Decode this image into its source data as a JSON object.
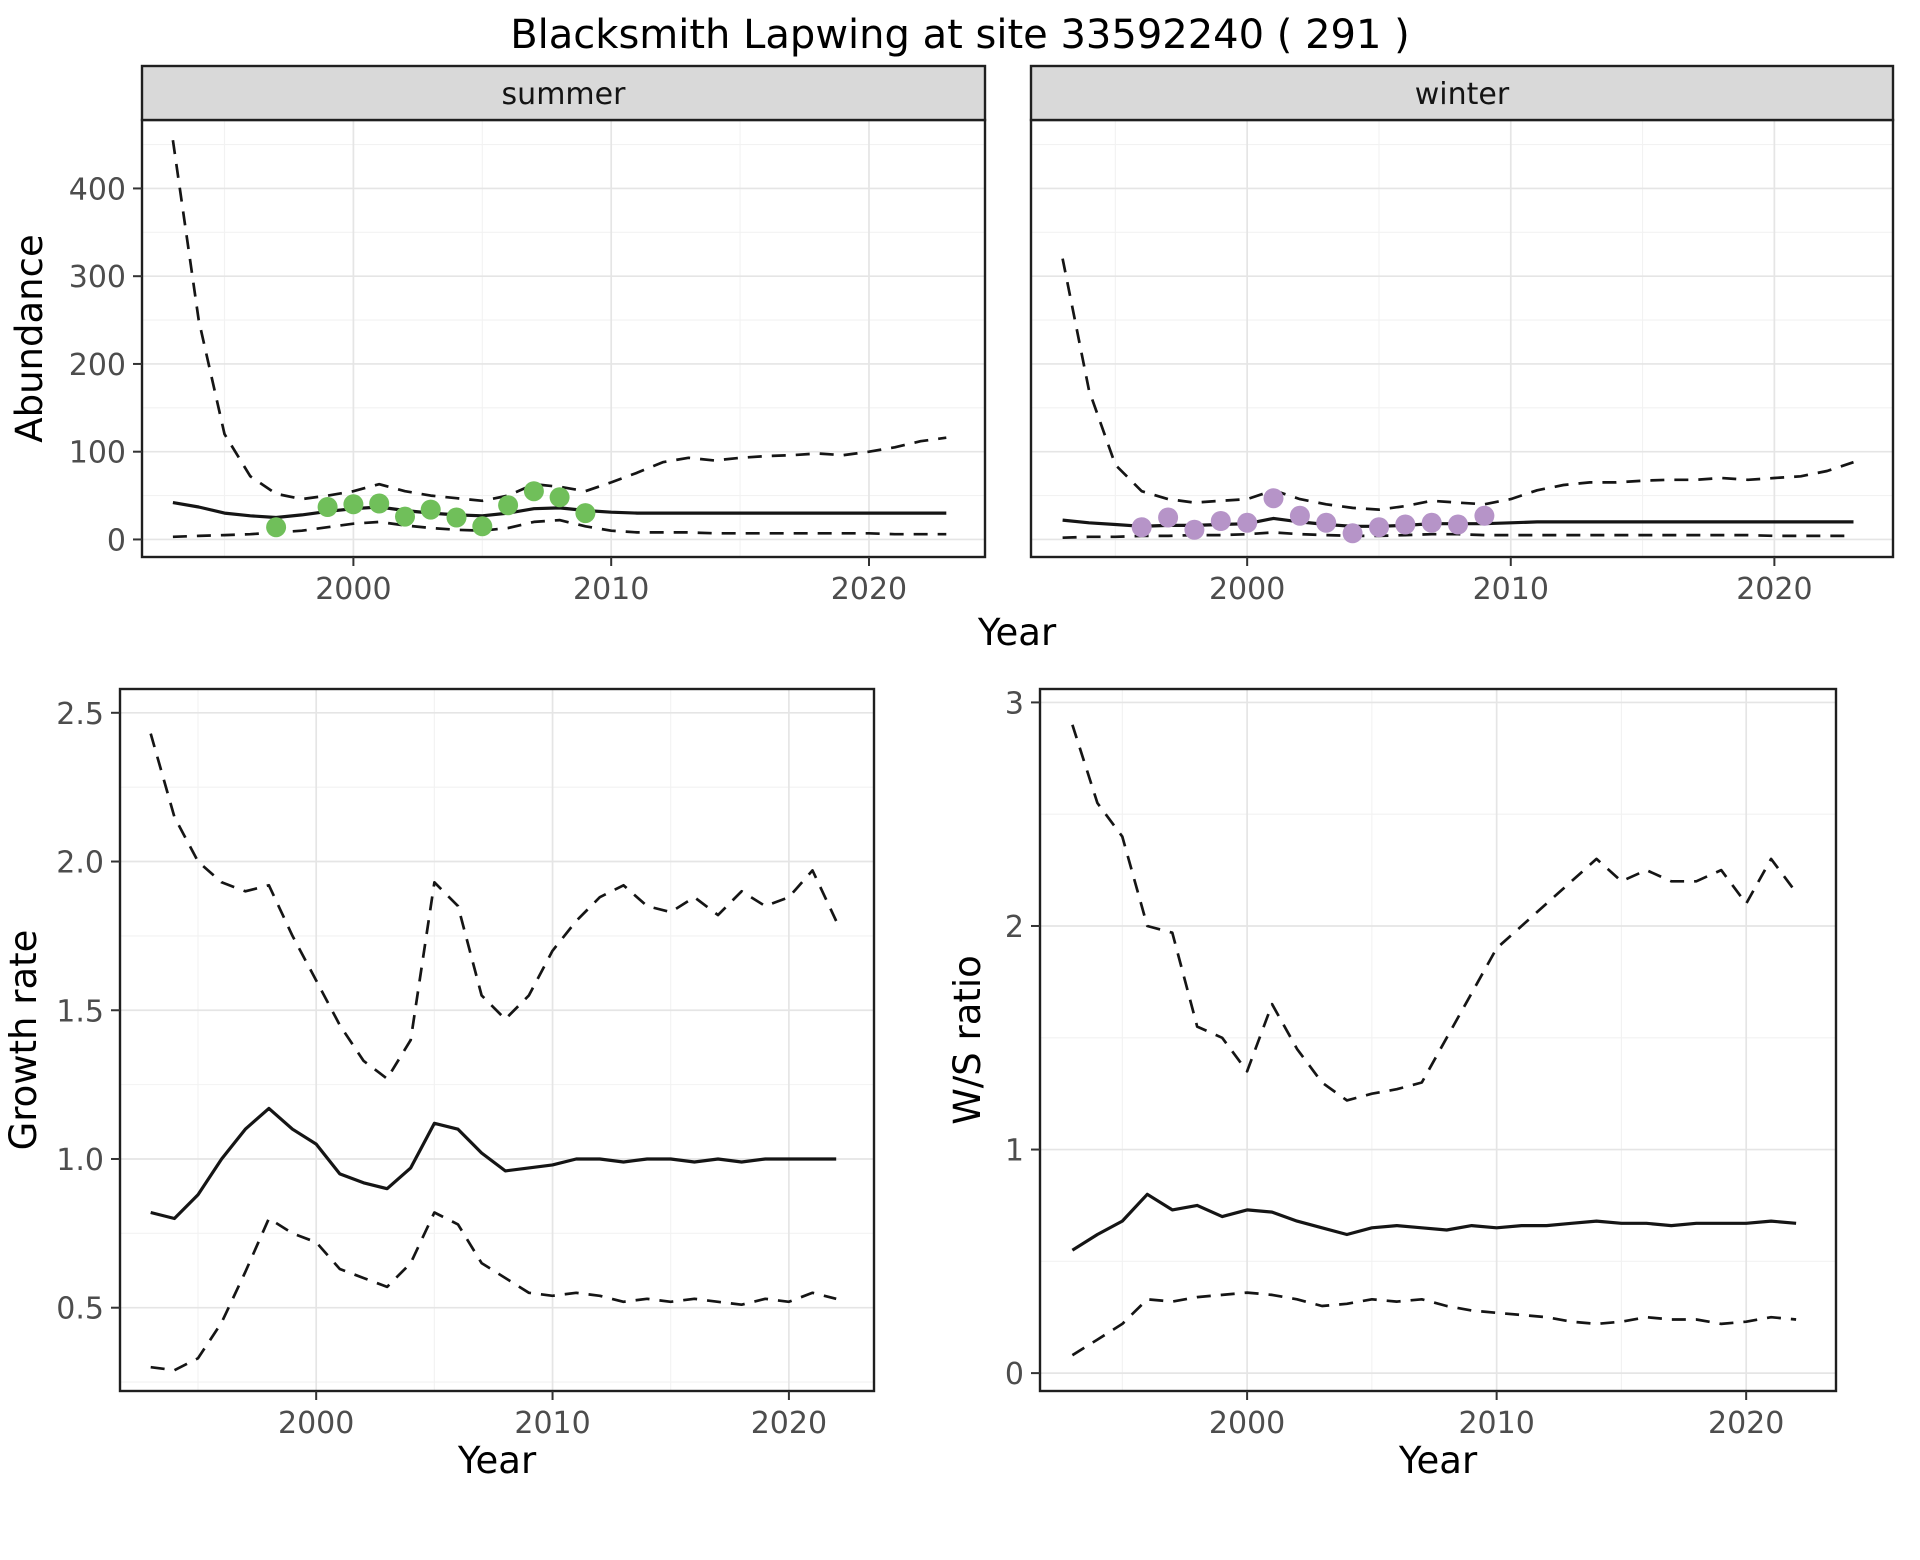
{
  "title": "Blacksmith Lapwing at site 33592240 ( 291 )",
  "colors": {
    "line": "#151515",
    "border": "#1f1f1f",
    "strip_bg": "#d9d9d9",
    "strip_text": "#141414",
    "grid_major": "#e5e5e5",
    "grid_minor": "#f2f2f2",
    "tick_text": "#4d4d4d",
    "summer_points": "#70bf5a",
    "winter_points": "#b694c8"
  },
  "chart_data": [
    {
      "id": "summer-abundance",
      "type": "line",
      "strip": "summer",
      "xlabel": "Year",
      "ylabel": "Abundance",
      "xlim": [
        1991.8,
        2024.5
      ],
      "ylim": [
        -20,
        478
      ],
      "xticks": [
        2000,
        2010,
        2020
      ],
      "xtick_labels": [
        "2000",
        "2010",
        "2020"
      ],
      "yticks": [
        0,
        100,
        200,
        300,
        400
      ],
      "ytick_labels": [
        "0",
        "100",
        "200",
        "300",
        "400"
      ],
      "grid": true,
      "legend": "none",
      "series": [
        {
          "name": "upper_95ci",
          "style": "dashed",
          "x": [
            1993,
            1994,
            1995,
            1996,
            1997,
            1998,
            1999,
            2000,
            2001,
            2002,
            2003,
            2004,
            2005,
            2006,
            2007,
            2008,
            2009,
            2010,
            2011,
            2012,
            2013,
            2014,
            2015,
            2016,
            2017,
            2018,
            2019,
            2020,
            2021,
            2022,
            2023
          ],
          "y": [
            455,
            250,
            120,
            72,
            52,
            46,
            50,
            55,
            63,
            55,
            50,
            47,
            44,
            50,
            63,
            60,
            55,
            65,
            76,
            88,
            93,
            90,
            93,
            95,
            96,
            98,
            96,
            100,
            105,
            112,
            116
          ]
        },
        {
          "name": "median",
          "style": "solid",
          "x": [
            1993,
            1994,
            1995,
            1996,
            1997,
            1998,
            1999,
            2000,
            2001,
            2002,
            2003,
            2004,
            2005,
            2006,
            2007,
            2008,
            2009,
            2010,
            2011,
            2012,
            2013,
            2014,
            2015,
            2016,
            2017,
            2018,
            2019,
            2020,
            2021,
            2022,
            2023
          ],
          "y": [
            42,
            37,
            30,
            27,
            25,
            28,
            32,
            35,
            37,
            33,
            30,
            28,
            27,
            30,
            35,
            36,
            33,
            31,
            30,
            30,
            30,
            30,
            30,
            30,
            30,
            30,
            30,
            30,
            30,
            30,
            30
          ]
        },
        {
          "name": "lower_95ci",
          "style": "dashed",
          "x": [
            1993,
            1994,
            1995,
            1996,
            1997,
            1998,
            1999,
            2000,
            2001,
            2002,
            2003,
            2004,
            2005,
            2006,
            2007,
            2008,
            2009,
            2010,
            2011,
            2012,
            2013,
            2014,
            2015,
            2016,
            2017,
            2018,
            2019,
            2020,
            2021,
            2022,
            2023
          ],
          "y": [
            3,
            4,
            5,
            6,
            8,
            10,
            14,
            18,
            20,
            16,
            13,
            11,
            10,
            13,
            20,
            22,
            15,
            10,
            8,
            8,
            8,
            7,
            7,
            7,
            7,
            7,
            7,
            7,
            6,
            6,
            6
          ]
        },
        {
          "name": "observations",
          "style": "points",
          "color": "#70bf5a",
          "x": [
            1997,
            1999,
            2000,
            2001,
            2002,
            2003,
            2004,
            2005,
            2006,
            2007,
            2008,
            2009
          ],
          "y": [
            14,
            37,
            40,
            41,
            26,
            34,
            25,
            15,
            39,
            55,
            48,
            30
          ]
        }
      ]
    },
    {
      "id": "winter-abundance",
      "type": "line",
      "strip": "winter",
      "xlabel": "Year",
      "ylabel": "Abundance",
      "xlim": [
        1991.8,
        2024.5
      ],
      "ylim": [
        -20,
        478
      ],
      "xticks": [
        2000,
        2010,
        2020
      ],
      "xtick_labels": [
        "2000",
        "2010",
        "2020"
      ],
      "yticks": [
        0,
        100,
        200,
        300,
        400
      ],
      "ytick_labels": [
        "0",
        "100",
        "200",
        "300",
        "400"
      ],
      "grid": true,
      "legend": "none",
      "series": [
        {
          "name": "upper_95ci",
          "style": "dashed",
          "x": [
            1993,
            1994,
            1995,
            1996,
            1997,
            1998,
            1999,
            2000,
            2001,
            2002,
            2003,
            2004,
            2005,
            2006,
            2007,
            2008,
            2009,
            2010,
            2011,
            2012,
            2013,
            2014,
            2015,
            2016,
            2017,
            2018,
            2019,
            2020,
            2021,
            2022,
            2023
          ],
          "y": [
            320,
            170,
            85,
            55,
            46,
            42,
            44,
            46,
            56,
            46,
            40,
            36,
            34,
            38,
            44,
            42,
            40,
            46,
            56,
            62,
            65,
            65,
            67,
            68,
            68,
            70,
            68,
            70,
            72,
            78,
            88
          ]
        },
        {
          "name": "median",
          "style": "solid",
          "x": [
            1993,
            1994,
            1995,
            1996,
            1997,
            1998,
            1999,
            2000,
            2001,
            2002,
            2003,
            2004,
            2005,
            2006,
            2007,
            2008,
            2009,
            2010,
            2011,
            2012,
            2013,
            2014,
            2015,
            2016,
            2017,
            2018,
            2019,
            2020,
            2021,
            2022,
            2023
          ],
          "y": [
            22,
            19,
            17,
            15,
            16,
            16,
            17,
            18,
            24,
            20,
            17,
            15,
            15,
            16,
            18,
            18,
            18,
            19,
            20,
            20,
            20,
            20,
            20,
            20,
            20,
            20,
            20,
            20,
            20,
            20,
            20
          ]
        },
        {
          "name": "lower_95ci",
          "style": "dashed",
          "x": [
            1993,
            1994,
            1995,
            1996,
            1997,
            1998,
            1999,
            2000,
            2001,
            2002,
            2003,
            2004,
            2005,
            2006,
            2007,
            2008,
            2009,
            2010,
            2011,
            2012,
            2013,
            2014,
            2015,
            2016,
            2017,
            2018,
            2019,
            2020,
            2021,
            2022,
            2023
          ],
          "y": [
            2,
            3,
            3,
            4,
            4,
            5,
            5,
            6,
            8,
            6,
            5,
            4,
            4,
            5,
            6,
            6,
            5,
            5,
            5,
            5,
            5,
            5,
            5,
            5,
            5,
            5,
            5,
            4,
            4,
            4,
            4
          ]
        },
        {
          "name": "observations",
          "style": "points",
          "color": "#b694c8",
          "x": [
            1996,
            1997,
            1998,
            1999,
            2000,
            2001,
            2002,
            2003,
            2004,
            2005,
            2006,
            2007,
            2008,
            2009
          ],
          "y": [
            14,
            25,
            11,
            21,
            19,
            47,
            27,
            19,
            7,
            14,
            17,
            19,
            17,
            27
          ]
        }
      ]
    },
    {
      "id": "growth-rate",
      "type": "line",
      "strip": "",
      "xlabel": "Year",
      "ylabel": "Growth rate",
      "xlim": [
        1991.7,
        2023.6
      ],
      "ylim": [
        0.22,
        2.58
      ],
      "xticks": [
        2000,
        2010,
        2020
      ],
      "xtick_labels": [
        "2000",
        "2010",
        "2020"
      ],
      "yticks": [
        0.5,
        1.0,
        1.5,
        2.0,
        2.5
      ],
      "ytick_labels": [
        "0.5",
        "1.0",
        "1.5",
        "2.0",
        "2.5"
      ],
      "grid": true,
      "legend": "none",
      "series": [
        {
          "name": "upper_95ci",
          "style": "dashed",
          "x": [
            1993,
            1994,
            1995,
            1996,
            1997,
            1998,
            1999,
            2000,
            2001,
            2002,
            2003,
            2004,
            2005,
            2006,
            2007,
            2008,
            2009,
            2010,
            2011,
            2012,
            2013,
            2014,
            2015,
            2016,
            2017,
            2018,
            2019,
            2020,
            2021,
            2022
          ],
          "y": [
            2.43,
            2.15,
            2.0,
            1.93,
            1.9,
            1.92,
            1.75,
            1.6,
            1.45,
            1.33,
            1.27,
            1.4,
            1.93,
            1.85,
            1.55,
            1.47,
            1.55,
            1.7,
            1.8,
            1.88,
            1.92,
            1.85,
            1.83,
            1.88,
            1.82,
            1.9,
            1.85,
            1.88,
            1.97,
            1.8
          ]
        },
        {
          "name": "median",
          "style": "solid",
          "x": [
            1993,
            1994,
            1995,
            1996,
            1997,
            1998,
            1999,
            2000,
            2001,
            2002,
            2003,
            2004,
            2005,
            2006,
            2007,
            2008,
            2009,
            2010,
            2011,
            2012,
            2013,
            2014,
            2015,
            2016,
            2017,
            2018,
            2019,
            2020,
            2021,
            2022
          ],
          "y": [
            0.82,
            0.8,
            0.88,
            1.0,
            1.1,
            1.17,
            1.1,
            1.05,
            0.95,
            0.92,
            0.9,
            0.97,
            1.12,
            1.1,
            1.02,
            0.96,
            0.97,
            0.98,
            1.0,
            1.0,
            0.99,
            1.0,
            1.0,
            0.99,
            1.0,
            0.99,
            1.0,
            1.0,
            1.0,
            1.0
          ]
        },
        {
          "name": "lower_95ci",
          "style": "dashed",
          "x": [
            1993,
            1994,
            1995,
            1996,
            1997,
            1998,
            1999,
            2000,
            2001,
            2002,
            2003,
            2004,
            2005,
            2006,
            2007,
            2008,
            2009,
            2010,
            2011,
            2012,
            2013,
            2014,
            2015,
            2016,
            2017,
            2018,
            2019,
            2020,
            2021,
            2022
          ],
          "y": [
            0.3,
            0.29,
            0.33,
            0.45,
            0.62,
            0.8,
            0.75,
            0.72,
            0.63,
            0.6,
            0.57,
            0.65,
            0.82,
            0.78,
            0.65,
            0.6,
            0.55,
            0.54,
            0.55,
            0.54,
            0.52,
            0.53,
            0.52,
            0.53,
            0.52,
            0.51,
            0.53,
            0.52,
            0.55,
            0.53
          ]
        }
      ]
    },
    {
      "id": "ws-ratio",
      "type": "line",
      "strip": "",
      "xlabel": "Year",
      "ylabel": "W/S ratio",
      "xlim": [
        1991.7,
        2023.6
      ],
      "ylim": [
        -0.08,
        3.06
      ],
      "xticks": [
        2000,
        2010,
        2020
      ],
      "xtick_labels": [
        "2000",
        "2010",
        "2020"
      ],
      "yticks": [
        0,
        1,
        2,
        3
      ],
      "ytick_labels": [
        "0",
        "1",
        "2",
        "3"
      ],
      "grid": true,
      "legend": "none",
      "series": [
        {
          "name": "upper_95ci",
          "style": "dashed",
          "x": [
            1993,
            1994,
            1995,
            1996,
            1997,
            1998,
            1999,
            2000,
            2001,
            2002,
            2003,
            2004,
            2005,
            2006,
            2007,
            2008,
            2009,
            2010,
            2011,
            2012,
            2013,
            2014,
            2015,
            2016,
            2017,
            2018,
            2019,
            2020,
            2021,
            2022
          ],
          "y": [
            2.9,
            2.55,
            2.4,
            2.0,
            1.97,
            1.55,
            1.5,
            1.35,
            1.65,
            1.45,
            1.3,
            1.22,
            1.25,
            1.27,
            1.3,
            1.5,
            1.7,
            1.9,
            2.0,
            2.1,
            2.2,
            2.3,
            2.2,
            2.25,
            2.2,
            2.2,
            2.25,
            2.1,
            2.3,
            2.15
          ]
        },
        {
          "name": "median",
          "style": "solid",
          "x": [
            1993,
            1994,
            1995,
            1996,
            1997,
            1998,
            1999,
            2000,
            2001,
            2002,
            2003,
            2004,
            2005,
            2006,
            2007,
            2008,
            2009,
            2010,
            2011,
            2012,
            2013,
            2014,
            2015,
            2016,
            2017,
            2018,
            2019,
            2020,
            2021,
            2022
          ],
          "y": [
            0.55,
            0.62,
            0.68,
            0.8,
            0.73,
            0.75,
            0.7,
            0.73,
            0.72,
            0.68,
            0.65,
            0.62,
            0.65,
            0.66,
            0.65,
            0.64,
            0.66,
            0.65,
            0.66,
            0.66,
            0.67,
            0.68,
            0.67,
            0.67,
            0.66,
            0.67,
            0.67,
            0.67,
            0.68,
            0.67
          ]
        },
        {
          "name": "lower_95ci",
          "style": "dashed",
          "x": [
            1993,
            1994,
            1995,
            1996,
            1997,
            1998,
            1999,
            2000,
            2001,
            2002,
            2003,
            2004,
            2005,
            2006,
            2007,
            2008,
            2009,
            2010,
            2011,
            2012,
            2013,
            2014,
            2015,
            2016,
            2017,
            2018,
            2019,
            2020,
            2021,
            2022
          ],
          "y": [
            0.08,
            0.15,
            0.22,
            0.33,
            0.32,
            0.34,
            0.35,
            0.36,
            0.35,
            0.33,
            0.3,
            0.31,
            0.33,
            0.32,
            0.33,
            0.3,
            0.28,
            0.27,
            0.26,
            0.25,
            0.23,
            0.22,
            0.23,
            0.25,
            0.24,
            0.24,
            0.22,
            0.23,
            0.25,
            0.24
          ]
        }
      ]
    }
  ]
}
